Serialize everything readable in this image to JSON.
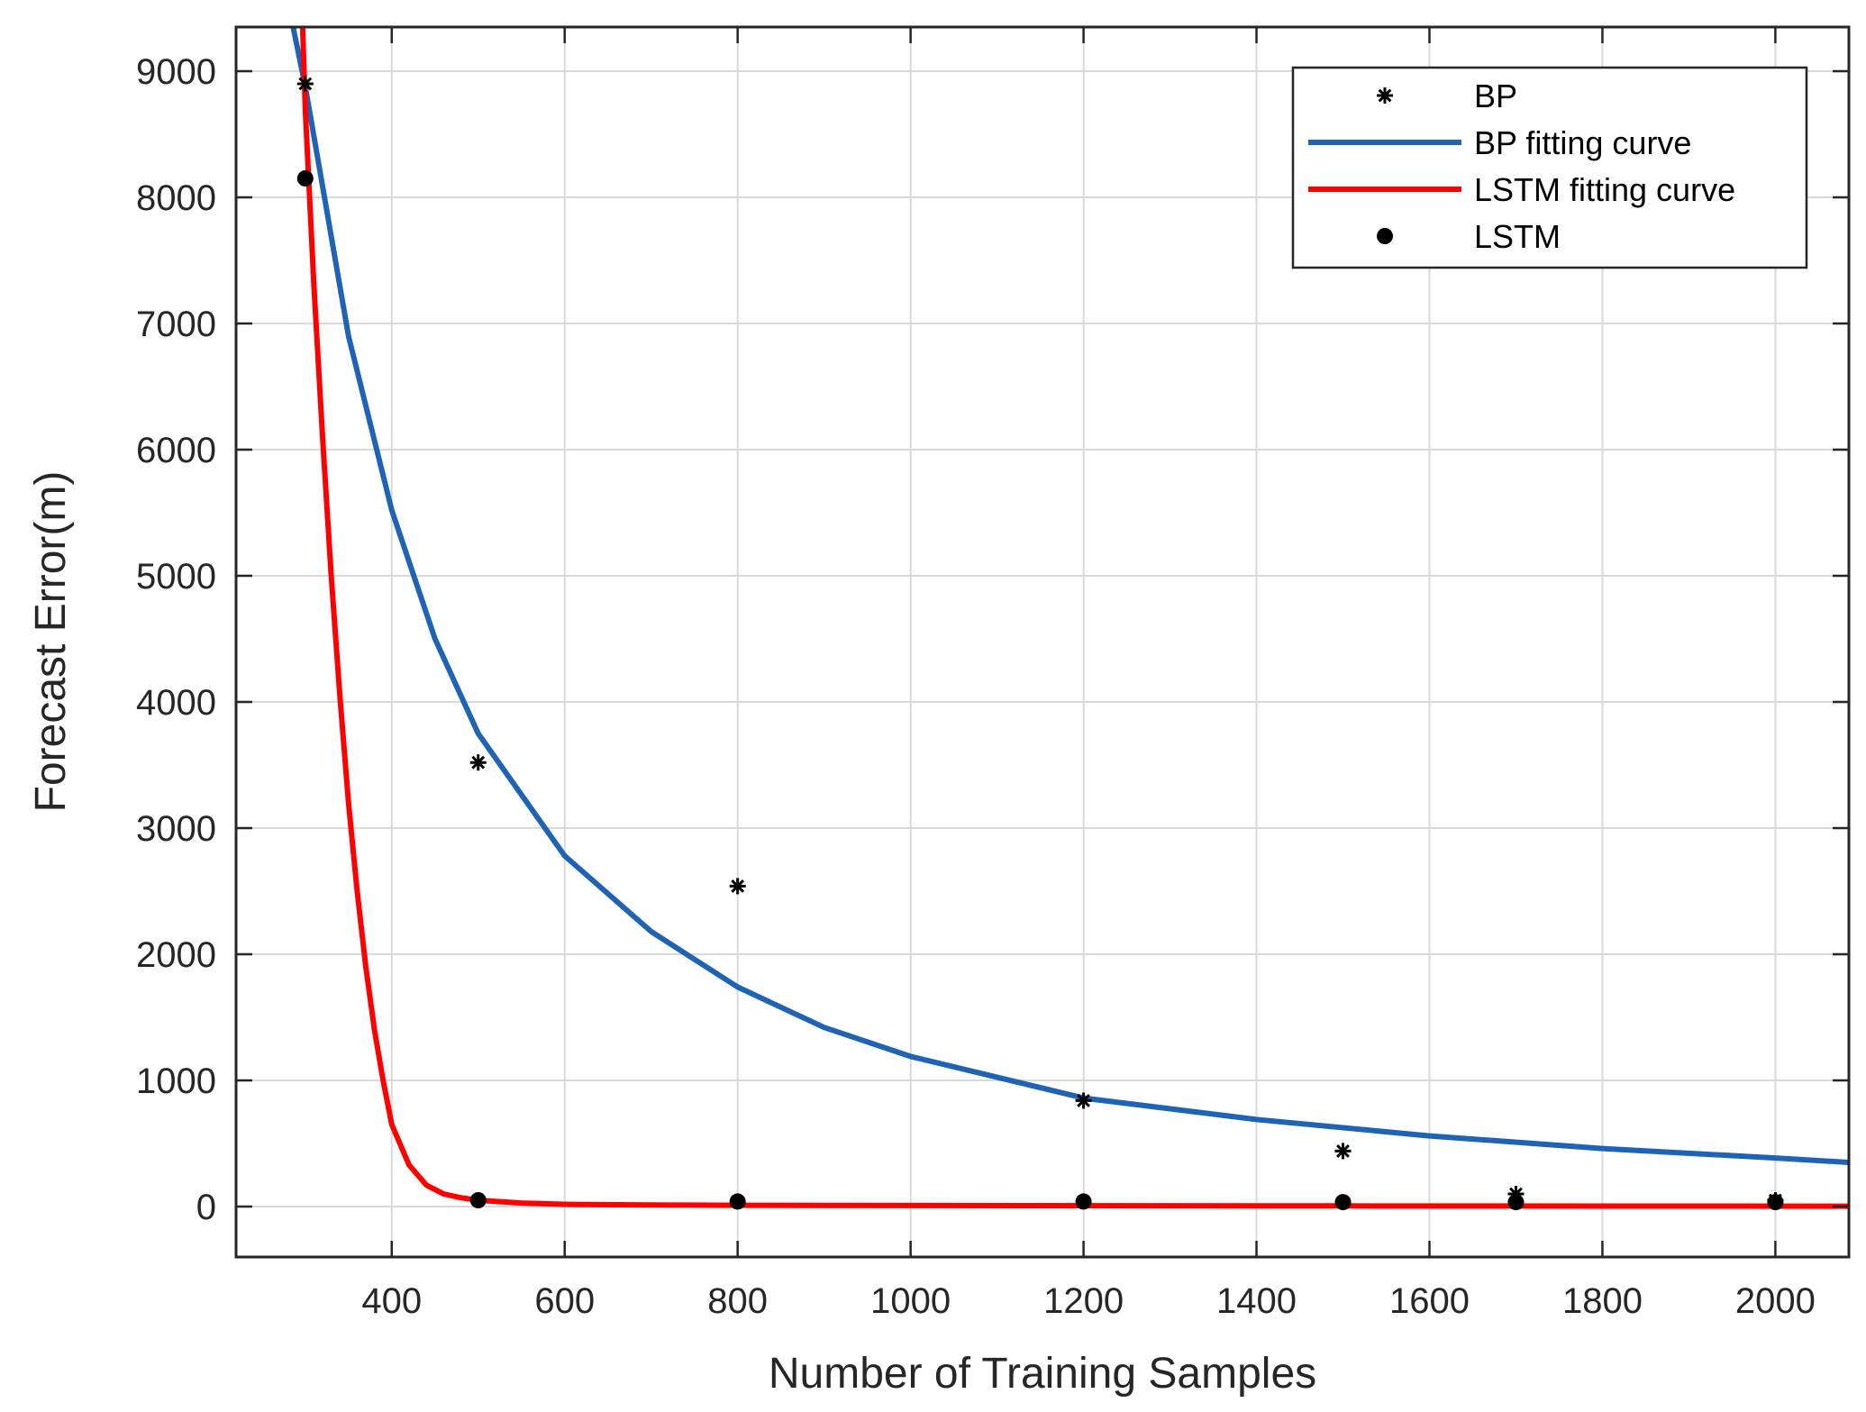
{
  "chart_data": {
    "type": "scatter",
    "title": "",
    "xlabel": "Number of Training Samples",
    "ylabel": "Forecast Error(m)",
    "xlim": [
      220,
      2085
    ],
    "ylim": [
      -400,
      9350
    ],
    "x_ticks": [
      400,
      600,
      800,
      1000,
      1200,
      1400,
      1600,
      1800,
      2000
    ],
    "y_ticks": [
      0,
      1000,
      2000,
      3000,
      4000,
      5000,
      6000,
      7000,
      8000,
      9000
    ],
    "grid": true,
    "legend_position": "top-right",
    "series": [
      {
        "name": "BP",
        "kind": "scatter",
        "marker": "asterisk",
        "color": "#000000",
        "x": [
          300,
          500,
          800,
          1200,
          1500,
          1700,
          2000
        ],
        "y": [
          8900,
          3520,
          2540,
          840,
          440,
          100,
          50
        ]
      },
      {
        "name": "BP fitting curve",
        "kind": "line",
        "color": "#1f63b5",
        "x": [
          286,
          300,
          350,
          400,
          450,
          500,
          600,
          700,
          800,
          900,
          1000,
          1200,
          1400,
          1600,
          1800,
          2000,
          2085
        ],
        "y": [
          9350,
          8880,
          6900,
          5520,
          4500,
          3750,
          2780,
          2180,
          1740,
          1420,
          1190,
          860,
          690,
          560,
          460,
          385,
          350
        ]
      },
      {
        "name": "LSTM fitting curve",
        "kind": "line",
        "color": "#ff0000",
        "x": [
          297,
          300,
          310,
          320,
          330,
          340,
          350,
          360,
          370,
          380,
          390,
          400,
          420,
          440,
          460,
          480,
          500,
          550,
          600,
          700,
          800,
          1000,
          1500,
          2085
        ],
        "y": [
          9350,
          8700,
          7300,
          6100,
          5000,
          4050,
          3200,
          2500,
          1900,
          1400,
          1000,
          650,
          330,
          170,
          100,
          70,
          50,
          28,
          18,
          12,
          10,
          8,
          5,
          3
        ]
      },
      {
        "name": "LSTM",
        "kind": "scatter",
        "marker": "dot",
        "color": "#000000",
        "x": [
          300,
          500,
          800,
          1200,
          1500,
          1700,
          2000
        ],
        "y": [
          8150,
          50,
          40,
          40,
          35,
          35,
          35
        ]
      }
    ]
  }
}
